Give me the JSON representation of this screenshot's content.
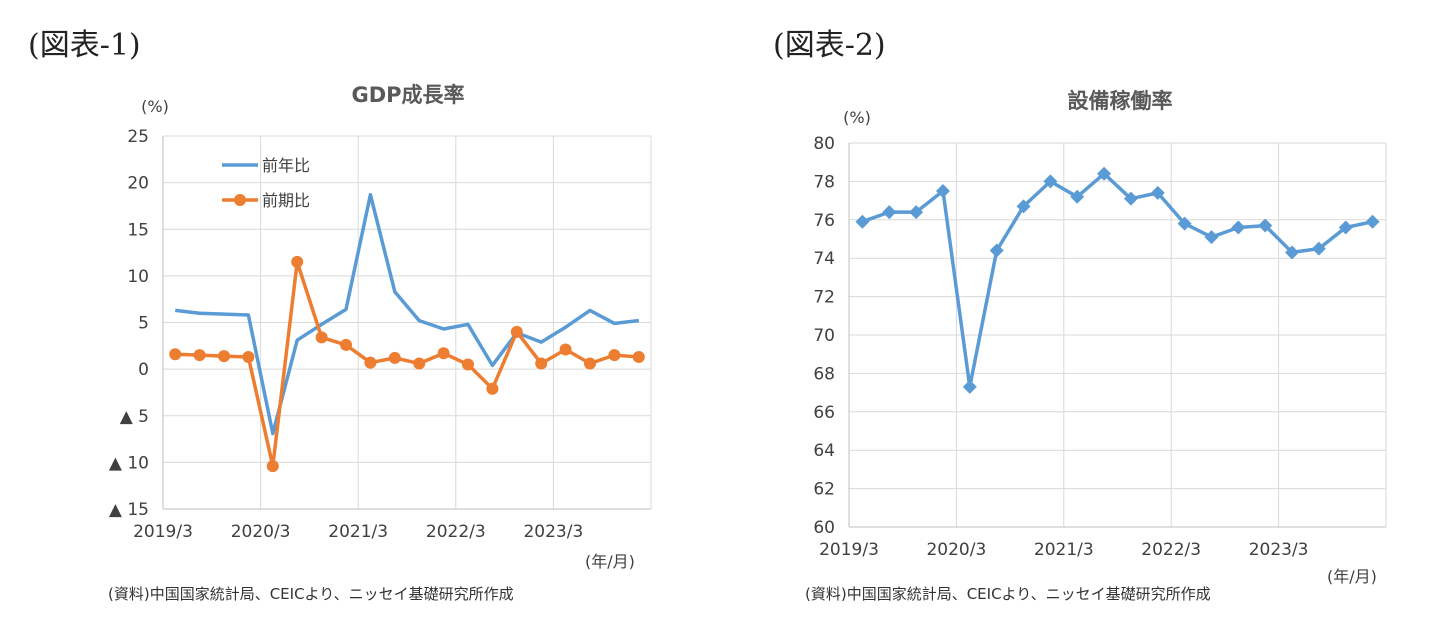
{
  "figure1": {
    "label": "(図表-1)",
    "source": "(資料)中国国家統計局、CEICより、ニッセイ基礎研究所作成"
  },
  "figure2": {
    "label": "(図表-2)",
    "source": "(資料)中国国家統計局、CEICより、ニッセイ基礎研究所作成"
  },
  "colors": {
    "blue": "#5b9bd5",
    "orange": "#ed7d31",
    "grid": "#d9d9d9",
    "axis": "#bfbfbf"
  },
  "chart_data": [
    {
      "type": "line",
      "title": "GDP成長率",
      "ylabel": "(%)",
      "xlabel": "(年/月)",
      "ylim": [
        -15,
        25
      ],
      "yticks": [
        {
          "value": 25,
          "label": "25"
        },
        {
          "value": 20,
          "label": "20"
        },
        {
          "value": 15,
          "label": "15"
        },
        {
          "value": 10,
          "label": "10"
        },
        {
          "value": 5,
          "label": "5"
        },
        {
          "value": 0,
          "label": "0"
        },
        {
          "value": -5,
          "label": "▲ 5"
        },
        {
          "value": -10,
          "label": "▲ 10"
        },
        {
          "value": -15,
          "label": "▲ 15"
        }
      ],
      "xtick_labels": [
        "2019/3",
        "2020/3",
        "2021/3",
        "2022/3",
        "2023/3"
      ],
      "grid": true,
      "legend_position": "top-left",
      "series": [
        {
          "name": "前年比",
          "marker": "none",
          "values": [
            6.3,
            6.0,
            5.9,
            5.8,
            -6.9,
            3.1,
            4.8,
            6.4,
            18.7,
            8.3,
            5.2,
            4.3,
            4.8,
            0.4,
            3.9,
            2.9,
            4.5,
            6.3,
            4.9,
            5.2
          ]
        },
        {
          "name": "前期比",
          "marker": "circle",
          "values": [
            1.6,
            1.5,
            1.4,
            1.3,
            -10.4,
            11.5,
            3.4,
            2.6,
            0.7,
            1.2,
            0.6,
            1.7,
            0.5,
            -2.1,
            4.0,
            0.6,
            2.1,
            0.6,
            1.5,
            1.3
          ]
        }
      ]
    },
    {
      "type": "line",
      "title": "設備稼働率",
      "ylabel": "(%)",
      "xlabel": "(年/月)",
      "ylim": [
        60,
        80
      ],
      "yticks": [
        {
          "value": 80,
          "label": "80"
        },
        {
          "value": 78,
          "label": "78"
        },
        {
          "value": 76,
          "label": "76"
        },
        {
          "value": 74,
          "label": "74"
        },
        {
          "value": 72,
          "label": "72"
        },
        {
          "value": 70,
          "label": "70"
        },
        {
          "value": 68,
          "label": "68"
        },
        {
          "value": 66,
          "label": "66"
        },
        {
          "value": 64,
          "label": "64"
        },
        {
          "value": 62,
          "label": "62"
        },
        {
          "value": 60,
          "label": "60"
        }
      ],
      "xtick_labels": [
        "2019/3",
        "2020/3",
        "2021/3",
        "2022/3",
        "2023/3"
      ],
      "grid": true,
      "series": [
        {
          "marker": "diamond",
          "values": [
            75.9,
            76.4,
            76.4,
            77.5,
            67.3,
            74.4,
            76.7,
            78.0,
            77.2,
            78.4,
            77.1,
            77.4,
            75.8,
            75.1,
            75.6,
            75.7,
            74.3,
            74.5,
            75.6,
            75.9
          ]
        }
      ]
    }
  ]
}
